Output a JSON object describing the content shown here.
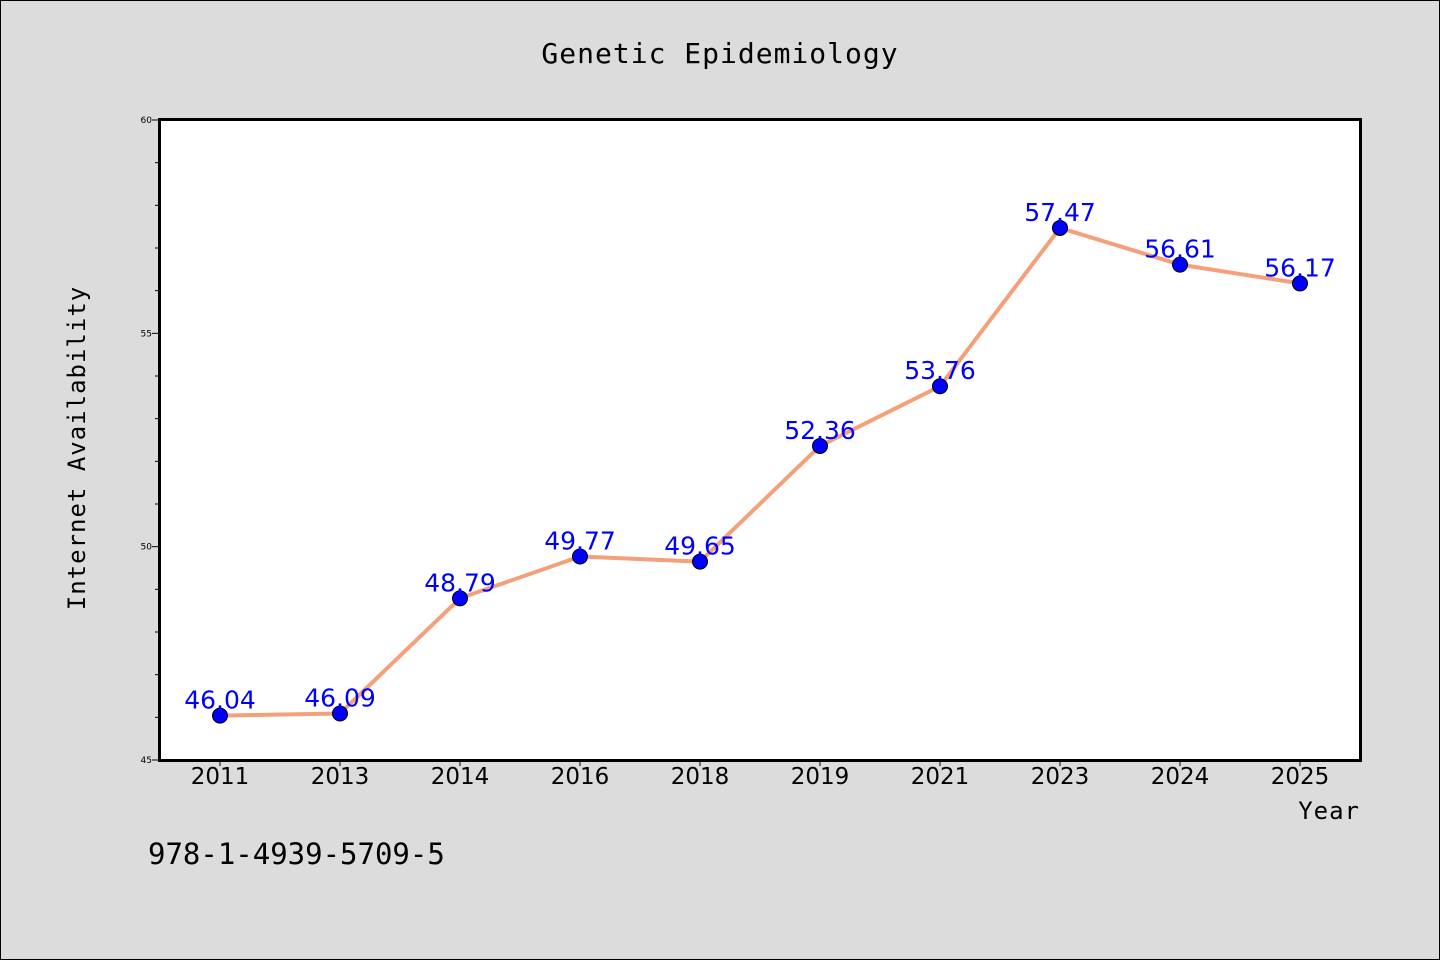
{
  "chart_data": {
    "type": "line",
    "title": "Genetic Epidemiology",
    "xlabel": "Year",
    "ylabel": "Internet Availability",
    "categories": [
      "2011",
      "2013",
      "2014",
      "2016",
      "2018",
      "2019",
      "2021",
      "2023",
      "2024",
      "2025"
    ],
    "series": [
      {
        "values": [
          46.04,
          46.09,
          48.79,
          49.77,
          49.65,
          52.36,
          53.76,
          57.47,
          56.61,
          56.17
        ],
        "data_labels": [
          "46.04",
          "46.09",
          "48.79",
          "49.77",
          "49.65",
          "52.36",
          "53.76",
          "57.47",
          "56.61",
          "56.17"
        ],
        "line_color": "#f4a07a",
        "marker_color": "#0000ff"
      }
    ],
    "ylim": [
      45,
      60
    ],
    "yticks": [
      "45",
      "50",
      "55",
      "60"
    ],
    "grid": false,
    "legend": "none"
  },
  "annotation": "978-1-4939-5709-5"
}
